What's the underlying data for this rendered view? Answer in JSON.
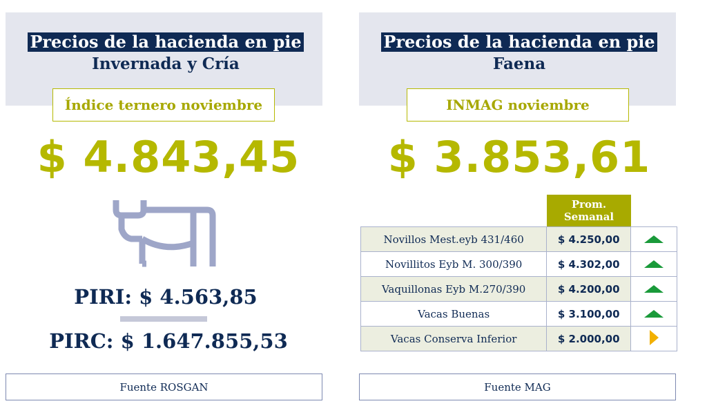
{
  "left": {
    "title": "Precios de la hacienda en pie",
    "subtitle": "Invernada y Cría",
    "index_label": "Índice ternero noviembre",
    "value": "$ 4.843,45",
    "icon": "cow-icon",
    "piri": "PIRI: $ 4.563,85",
    "pirc": "PIRC: $ 1.647.855,53",
    "source": "Fuente ROSGAN"
  },
  "right": {
    "title": "Precios de la hacienda en pie",
    "subtitle": "Faena",
    "index_label": "INMAG noviembre",
    "value": "$ 3.853,61",
    "table": {
      "header_line1": "Prom.",
      "header_line2": "Semanal",
      "rows": [
        {
          "name": "Novillos Mest.eyb 431/460",
          "price": "$ 4.250,00",
          "trend": "up"
        },
        {
          "name": "Novillitos Eyb M. 300/390",
          "price": "$ 4.302,00",
          "trend": "up"
        },
        {
          "name": "Vaquillonas Eyb M.270/390",
          "price": "$ 4.200,00",
          "trend": "up"
        },
        {
          "name": "Vacas Buenas",
          "price": "$ 3.100,00",
          "trend": "up"
        },
        {
          "name": "Vacas Conserva Inferior",
          "price": "$ 2.000,00",
          "trend": "flat"
        }
      ]
    },
    "source": "Fuente MAG"
  },
  "colors": {
    "navy": "#0f2a54",
    "olive": "#b5b800",
    "header_bg": "#e4e6ee",
    "up": "#1a9a3a",
    "flat": "#f2b000"
  }
}
